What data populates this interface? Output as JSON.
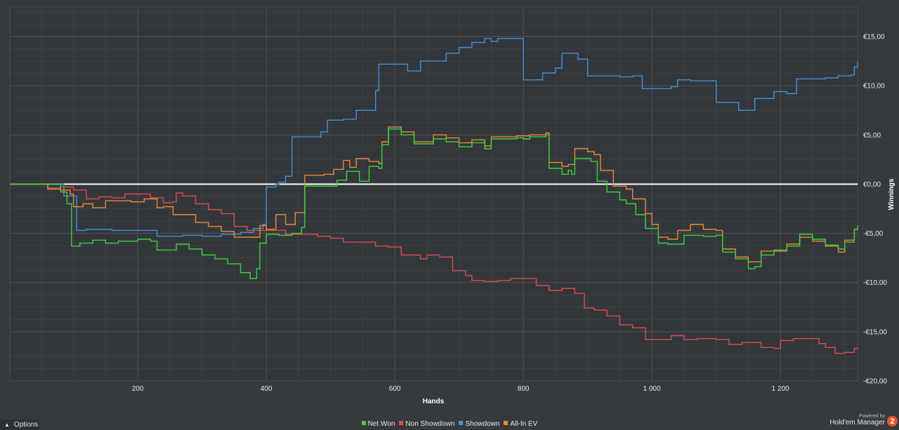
{
  "chart_data": {
    "type": "line",
    "xlabel": "Hands",
    "ylabel": "Winnings",
    "xlim": [
      1,
      1320
    ],
    "ylim": [
      -20,
      18
    ],
    "x_ticks": [
      200,
      400,
      600,
      800,
      1000,
      1200
    ],
    "x_tick_labels": [
      "200",
      "400",
      "600",
      "800",
      "1 000",
      "1 200"
    ],
    "y_ticks": [
      15,
      10,
      5,
      0,
      -5,
      -10,
      -15,
      -20
    ],
    "y_tick_labels": [
      "€15,00",
      "€10,00",
      "€5,00",
      "€0,00",
      "-€5,00",
      "-€10,00",
      "-€15,00",
      "-€20,00"
    ],
    "grid": true,
    "legend_position": "bottom-center",
    "zero_line_color": "#ffffff",
    "series": [
      {
        "name": "Net Won",
        "color": "#3cd23c",
        "points": [
          [
            1,
            0
          ],
          [
            80,
            -0.8
          ],
          [
            90,
            -2.0
          ],
          [
            95,
            -2.0
          ],
          [
            97,
            -6.3
          ],
          [
            110,
            -6.0
          ],
          [
            130,
            -5.7
          ],
          [
            150,
            -6.0
          ],
          [
            170,
            -5.8
          ],
          [
            200,
            -5.6
          ],
          [
            220,
            -5.8
          ],
          [
            230,
            -6.7
          ],
          [
            255,
            -6.7
          ],
          [
            260,
            -6.1
          ],
          [
            280,
            -6.6
          ],
          [
            300,
            -7.2
          ],
          [
            320,
            -7.6
          ],
          [
            340,
            -8.1
          ],
          [
            360,
            -9.0
          ],
          [
            375,
            -9.6
          ],
          [
            385,
            -8.6
          ],
          [
            390,
            -6.0
          ],
          [
            400,
            -5.1
          ],
          [
            420,
            -5.2
          ],
          [
            440,
            -5.0
          ],
          [
            455,
            -4.4
          ],
          [
            460,
            -0.2
          ],
          [
            480,
            -0.2
          ],
          [
            500,
            -0.2
          ],
          [
            510,
            0.4
          ],
          [
            525,
            1.3
          ],
          [
            545,
            0.3
          ],
          [
            560,
            1.8
          ],
          [
            575,
            1.6
          ],
          [
            580,
            4.0
          ],
          [
            590,
            5.6
          ],
          [
            610,
            5.0
          ],
          [
            630,
            4.1
          ],
          [
            645,
            4.1
          ],
          [
            660,
            4.6
          ],
          [
            680,
            4.3
          ],
          [
            700,
            3.8
          ],
          [
            720,
            4.2
          ],
          [
            740,
            3.6
          ],
          [
            750,
            4.6
          ],
          [
            770,
            4.6
          ],
          [
            790,
            4.7
          ],
          [
            800,
            4.6
          ],
          [
            810,
            4.8
          ],
          [
            835,
            5.0
          ],
          [
            840,
            1.6
          ],
          [
            860,
            1.0
          ],
          [
            870,
            1.4
          ],
          [
            875,
            1.0
          ],
          [
            880,
            2.6
          ],
          [
            895,
            2.6
          ],
          [
            905,
            2.3
          ],
          [
            915,
            0.3
          ],
          [
            930,
            -0.8
          ],
          [
            950,
            -1.6
          ],
          [
            960,
            -2.0
          ],
          [
            975,
            -3.1
          ],
          [
            990,
            -4.5
          ],
          [
            1010,
            -6.0
          ],
          [
            1025,
            -6.1
          ],
          [
            1050,
            -5.2
          ],
          [
            1080,
            -5.3
          ],
          [
            1100,
            -5.2
          ],
          [
            1110,
            -6.9
          ],
          [
            1130,
            -7.6
          ],
          [
            1150,
            -8.6
          ],
          [
            1160,
            -8.4
          ],
          [
            1170,
            -7.2
          ],
          [
            1190,
            -6.7
          ],
          [
            1210,
            -6.3
          ],
          [
            1230,
            -5.1
          ],
          [
            1250,
            -5.6
          ],
          [
            1270,
            -6.2
          ],
          [
            1290,
            -6.6
          ],
          [
            1300,
            -5.9
          ],
          [
            1315,
            -4.6
          ],
          [
            1320,
            -4.2
          ]
        ]
      },
      {
        "name": "Non Showdown",
        "color": "#de4b4b",
        "points": [
          [
            1,
            0
          ],
          [
            60,
            -0.4
          ],
          [
            80,
            -0.3
          ],
          [
            100,
            -0.6
          ],
          [
            120,
            -1.5
          ],
          [
            140,
            -1.3
          ],
          [
            160,
            -1.4
          ],
          [
            180,
            -1.0
          ],
          [
            200,
            -1.0
          ],
          [
            220,
            -1.4
          ],
          [
            240,
            -1.9
          ],
          [
            255,
            -1.8
          ],
          [
            260,
            -0.9
          ],
          [
            270,
            -1.2
          ],
          [
            290,
            -2.0
          ],
          [
            310,
            -2.6
          ],
          [
            330,
            -3.0
          ],
          [
            350,
            -4.3
          ],
          [
            370,
            -4.7
          ],
          [
            400,
            -4.7
          ],
          [
            430,
            -5.1
          ],
          [
            450,
            -5.1
          ],
          [
            480,
            -5.3
          ],
          [
            500,
            -5.5
          ],
          [
            520,
            -5.9
          ],
          [
            550,
            -5.9
          ],
          [
            570,
            -6.3
          ],
          [
            590,
            -6.4
          ],
          [
            610,
            -7.2
          ],
          [
            640,
            -7.6
          ],
          [
            650,
            -7.2
          ],
          [
            670,
            -7.4
          ],
          [
            690,
            -8.8
          ],
          [
            710,
            -9.3
          ],
          [
            720,
            -9.8
          ],
          [
            740,
            -9.9
          ],
          [
            760,
            -9.8
          ],
          [
            780,
            -9.6
          ],
          [
            800,
            -9.6
          ],
          [
            820,
            -10.3
          ],
          [
            840,
            -10.8
          ],
          [
            860,
            -10.6
          ],
          [
            880,
            -11.1
          ],
          [
            895,
            -12.6
          ],
          [
            910,
            -12.8
          ],
          [
            930,
            -13.4
          ],
          [
            950,
            -14.3
          ],
          [
            970,
            -14.6
          ],
          [
            990,
            -15.8
          ],
          [
            1010,
            -15.8
          ],
          [
            1030,
            -15.4
          ],
          [
            1050,
            -15.8
          ],
          [
            1070,
            -15.7
          ],
          [
            1100,
            -15.8
          ],
          [
            1120,
            -16.3
          ],
          [
            1140,
            -16.1
          ],
          [
            1170,
            -16.6
          ],
          [
            1190,
            -16.7
          ],
          [
            1200,
            -15.9
          ],
          [
            1220,
            -15.7
          ],
          [
            1240,
            -15.7
          ],
          [
            1260,
            -16.2
          ],
          [
            1270,
            -16.6
          ],
          [
            1285,
            -17.2
          ],
          [
            1300,
            -17.1
          ],
          [
            1315,
            -16.7
          ],
          [
            1320,
            -16.6
          ]
        ]
      },
      {
        "name": "Showdown",
        "color": "#3f93d6",
        "points": [
          [
            1,
            0
          ],
          [
            80,
            0
          ],
          [
            85,
            -1.2
          ],
          [
            95,
            -1.2
          ],
          [
            105,
            -4.7
          ],
          [
            120,
            -4.6
          ],
          [
            160,
            -4.7
          ],
          [
            200,
            -4.7
          ],
          [
            220,
            -4.7
          ],
          [
            230,
            -5.3
          ],
          [
            260,
            -5.3
          ],
          [
            270,
            -5.2
          ],
          [
            300,
            -5.3
          ],
          [
            330,
            -5.1
          ],
          [
            360,
            -4.9
          ],
          [
            380,
            -4.5
          ],
          [
            395,
            -4.1
          ],
          [
            400,
            -0.3
          ],
          [
            415,
            0.0
          ],
          [
            420,
            0.2
          ],
          [
            430,
            0.8
          ],
          [
            440,
            4.8
          ],
          [
            470,
            4.8
          ],
          [
            485,
            5.3
          ],
          [
            495,
            6.5
          ],
          [
            520,
            6.6
          ],
          [
            540,
            7.5
          ],
          [
            560,
            7.5
          ],
          [
            570,
            9.5
          ],
          [
            575,
            12.2
          ],
          [
            600,
            12.2
          ],
          [
            620,
            11.5
          ],
          [
            640,
            12.5
          ],
          [
            660,
            12.5
          ],
          [
            680,
            13.3
          ],
          [
            700,
            13.9
          ],
          [
            720,
            14.4
          ],
          [
            730,
            14.4
          ],
          [
            740,
            14.8
          ],
          [
            750,
            14.5
          ],
          [
            760,
            14.8
          ],
          [
            780,
            14.8
          ],
          [
            790,
            14.8
          ],
          [
            800,
            10.6
          ],
          [
            810,
            10.6
          ],
          [
            830,
            11.3
          ],
          [
            850,
            11.8
          ],
          [
            860,
            13.3
          ],
          [
            880,
            13.3
          ],
          [
            885,
            12.7
          ],
          [
            900,
            11.0
          ],
          [
            920,
            11.0
          ],
          [
            950,
            10.9
          ],
          [
            970,
            11.0
          ],
          [
            985,
            9.7
          ],
          [
            1000,
            9.7
          ],
          [
            1030,
            9.9
          ],
          [
            1040,
            10.6
          ],
          [
            1060,
            10.5
          ],
          [
            1080,
            10.5
          ],
          [
            1090,
            10.5
          ],
          [
            1100,
            8.3
          ],
          [
            1120,
            8.3
          ],
          [
            1135,
            7.5
          ],
          [
            1150,
            7.5
          ],
          [
            1160,
            8.7
          ],
          [
            1170,
            8.7
          ],
          [
            1190,
            9.4
          ],
          [
            1200,
            9.4
          ],
          [
            1210,
            9.2
          ],
          [
            1225,
            10.7
          ],
          [
            1250,
            10.7
          ],
          [
            1270,
            10.8
          ],
          [
            1290,
            11.0
          ],
          [
            1310,
            11.1
          ],
          [
            1315,
            11.9
          ],
          [
            1320,
            12.4
          ]
        ]
      },
      {
        "name": "All-In EV",
        "color": "#ee8a32",
        "points": [
          [
            1,
            0
          ],
          [
            60,
            -0.5
          ],
          [
            80,
            -0.6
          ],
          [
            95,
            -1.0
          ],
          [
            100,
            -2.3
          ],
          [
            115,
            -2.0
          ],
          [
            130,
            -2.4
          ],
          [
            150,
            -1.7
          ],
          [
            170,
            -1.7
          ],
          [
            190,
            -1.8
          ],
          [
            210,
            -1.5
          ],
          [
            230,
            -2.4
          ],
          [
            240,
            -2.3
          ],
          [
            255,
            -3.1
          ],
          [
            265,
            -3.1
          ],
          [
            290,
            -3.9
          ],
          [
            310,
            -4.3
          ],
          [
            330,
            -4.8
          ],
          [
            350,
            -5.4
          ],
          [
            370,
            -5.4
          ],
          [
            390,
            -4.2
          ],
          [
            400,
            -4.6
          ],
          [
            415,
            -3.1
          ],
          [
            430,
            -4.1
          ],
          [
            445,
            -2.9
          ],
          [
            460,
            0.9
          ],
          [
            470,
            0.9
          ],
          [
            490,
            1.0
          ],
          [
            505,
            1.5
          ],
          [
            520,
            2.4
          ],
          [
            530,
            1.7
          ],
          [
            540,
            2.6
          ],
          [
            560,
            2.3
          ],
          [
            575,
            2.1
          ],
          [
            580,
            4.3
          ],
          [
            590,
            5.8
          ],
          [
            610,
            5.3
          ],
          [
            630,
            4.3
          ],
          [
            645,
            4.3
          ],
          [
            660,
            5.0
          ],
          [
            680,
            4.7
          ],
          [
            700,
            4.2
          ],
          [
            720,
            4.5
          ],
          [
            740,
            3.9
          ],
          [
            750,
            4.8
          ],
          [
            770,
            4.8
          ],
          [
            790,
            4.9
          ],
          [
            810,
            5.0
          ],
          [
            835,
            5.2
          ],
          [
            840,
            2.2
          ],
          [
            860,
            1.8
          ],
          [
            870,
            2.0
          ],
          [
            880,
            3.6
          ],
          [
            900,
            3.3
          ],
          [
            910,
            3.0
          ],
          [
            920,
            1.4
          ],
          [
            940,
            -0.2
          ],
          [
            960,
            -0.5
          ],
          [
            970,
            -1.5
          ],
          [
            990,
            -3.0
          ],
          [
            1000,
            -4.1
          ],
          [
            1010,
            -5.4
          ],
          [
            1025,
            -5.6
          ],
          [
            1040,
            -4.7
          ],
          [
            1060,
            -4.1
          ],
          [
            1080,
            -4.6
          ],
          [
            1100,
            -4.7
          ],
          [
            1110,
            -6.6
          ],
          [
            1130,
            -7.4
          ],
          [
            1150,
            -7.9
          ],
          [
            1160,
            -7.9
          ],
          [
            1170,
            -6.8
          ],
          [
            1190,
            -6.8
          ],
          [
            1210,
            -6.1
          ],
          [
            1230,
            -5.4
          ],
          [
            1250,
            -5.8
          ],
          [
            1270,
            -6.3
          ],
          [
            1290,
            -6.9
          ],
          [
            1300,
            -5.7
          ],
          [
            1315,
            -4.6
          ],
          [
            1320,
            -4.4
          ]
        ]
      }
    ]
  },
  "options": {
    "label": "Options",
    "icon": "chevron-up-icon"
  },
  "brand": {
    "powered_by": "Powered by",
    "product": "Hold'em Manager",
    "logo_text": "2"
  }
}
